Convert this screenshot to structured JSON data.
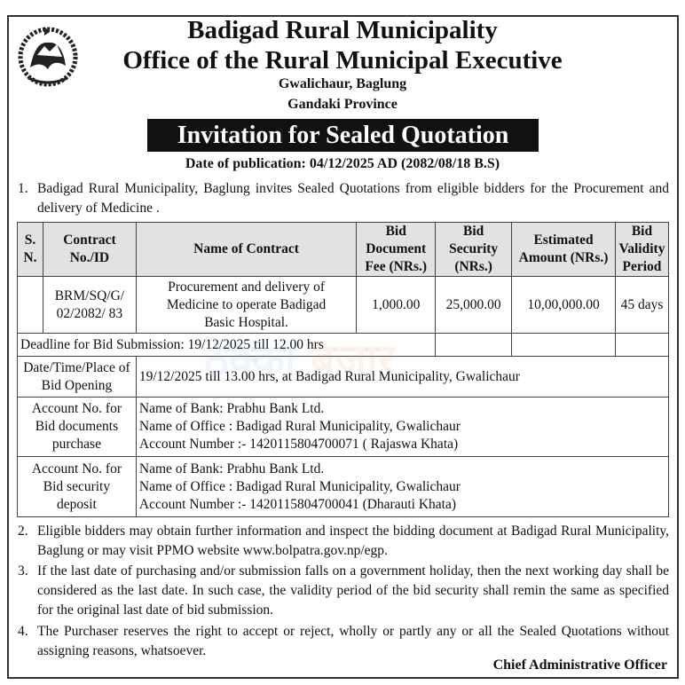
{
  "header": {
    "title": "Badigad Rural Municipality",
    "subtitle": "Office of the Rural Municipal Executive",
    "address": "Gwalichaur, Baglung",
    "province": "Gandaki Province",
    "banner": "Invitation for Sealed Quotation",
    "publication_date": "Date of publication: 04/12/2025 AD (2082/08/18 B.S)"
  },
  "para1": {
    "num": "1.",
    "text": "Badigad Rural Municipality, Baglung invites Sealed Quotations from eligible bidders for the Procurement and delivery of Medicine ."
  },
  "table": {
    "headers": [
      "S. N.",
      "Contract No./ID",
      "Name of Contract",
      "Bid Document Fee (NRs.)",
      "Bid Security (NRs.)",
      "Estimated Amount (NRs.)",
      "Bid Validity Period"
    ],
    "row": {
      "sn": "",
      "contract_id": "BRM/SQ/G/ 02/2082/ 83",
      "name": "Procurement and delivery of Medicine to operate Badigad Basic Hospital.",
      "fee": "1,000.00",
      "security": "25,000.00",
      "estimated": "10,00,000.00",
      "validity": "45 days"
    },
    "deadline": "Deadline for Bid Submission: 19/12/2025 till 12.00 hrs",
    "opening_label": "Date/Time/Place of Bid Opening",
    "opening_value": "19/12/2025 till 13.00 hrs, at Badigad Rural Municipality, Gwalichaur",
    "account1": {
      "label": "Account No. for Bid documents purchase",
      "bank": "Name of Bank: Prabhu Bank Ltd.",
      "office": "Name of Office : Badigad Rural Municipality, Gwalichaur",
      "number": "Account Number :- 1420115804700071 ( Rajaswa Khata)"
    },
    "account2": {
      "label": "Account No. for Bid security deposit",
      "bank": "Name of Bank: Prabhu Bank Ltd.",
      "office": "Name of Office : Badigad Rural Municipality, Gwalichaur",
      "number": "Account Number :- 1420115804700041 (Dharauti Khata)"
    }
  },
  "para2": {
    "num": "2.",
    "text": "Eligible bidders may obtain further information and inspect the bidding document at Badigad Rural Municipality, Baglung or may visit PPMO website www.bolpatra.gov.np/egp."
  },
  "para3": {
    "num": "3.",
    "text": "If the last date of purchasing and/or submission falls on a government holiday, then the next working day shall be considered as the last date. In such case, the validity period of the bid security shall remin the same as specified for the original last date of bid submission."
  },
  "para4": {
    "num": "4.",
    "text": "The Purchaser reserves the right to accept or reject, wholly or partly any or all the Sealed Quotations without assigning reasons, whatsoever."
  },
  "signature": "Chief Administrative Officer",
  "watermark": {
    "part1": "ठेक्का",
    "part2": "बजार"
  }
}
